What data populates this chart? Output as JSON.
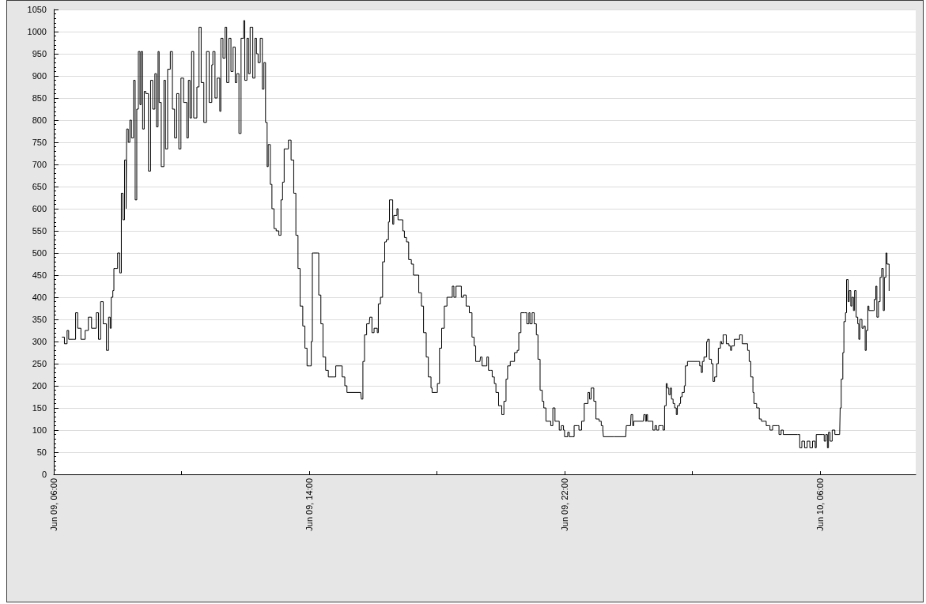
{
  "chart_data": {
    "type": "step",
    "color": "#000000",
    "line_style": "solid",
    "grid": "y",
    "xlim": [
      "--06-09T06:00",
      "--06-10T09:00"
    ],
    "xticks": [
      {
        "value": "--06-09T06:00",
        "label": "Jun 09, 06:00"
      },
      {
        "value": "--06-09T10:00",
        "label": null
      },
      {
        "value": "--06-09T14:00",
        "label": "Jun 09, 14:00"
      },
      {
        "value": "--06-09T18:00",
        "label": null
      },
      {
        "value": "--06-09T22:00",
        "label": "Jun 09, 22:00"
      },
      {
        "value": "--06-10T02:00",
        "label": null
      },
      {
        "value": "--06-10T06:00",
        "label": "Jun 10, 06:00"
      }
    ],
    "ylim": [
      0,
      1050
    ],
    "yticks": [
      0,
      50,
      100,
      150,
      200,
      250,
      300,
      350,
      400,
      450,
      500,
      550,
      600,
      650,
      700,
      750,
      800,
      850,
      900,
      950,
      1000,
      1050
    ],
    "x": [
      "--06-09T06:16",
      "--06-09T06:20",
      "--06-09T06:25",
      "--06-09T06:28",
      "--06-09T06:36",
      "--06-09T06:41",
      "--06-09T06:45",
      "--06-09T06:51",
      "--06-09T06:59",
      "--06-09T07:05",
      "--06-09T07:11",
      "--06-09T07:20",
      "--06-09T07:24",
      "--06-09T07:28",
      "--06-09T07:33",
      "--06-09T07:39",
      "--06-09T07:43",
      "--06-09T07:46",
      "--06-09T07:48",
      "--06-09T07:51",
      "--06-09T07:53",
      "--06-09T07:57",
      "--06-09T08:00",
      "--06-09T08:04",
      "--06-09T08:07",
      "--06-09T08:10",
      "--06-09T08:13",
      "--06-09T08:16",
      "--06-09T08:17",
      "--06-09T08:20",
      "--06-09T08:23",
      "--06-09T08:26",
      "--06-09T08:30",
      "--06-09T08:33",
      "--06-09T08:36",
      "--06-09T08:39",
      "--06-09T08:42",
      "--06-09T08:44",
      "--06-09T08:47",
      "--06-09T08:50",
      "--06-09T08:53",
      "--06-09T08:58",
      "--06-09T09:02",
      "--06-09T09:06",
      "--06-09T09:10",
      "--06-09T09:13",
      "--06-09T09:16",
      "--06-09T09:18",
      "--06-09T09:22",
      "--06-09T09:27",
      "--06-09T09:30",
      "--06-09T09:34",
      "--06-09T09:39",
      "--06-09T09:43",
      "--06-09T09:47",
      "--06-09T09:51",
      "--06-09T09:55",
      "--06-09T09:59",
      "--06-09T10:04",
      "--06-09T10:10",
      "--06-09T10:13",
      "--06-09T10:16",
      "--06-09T10:19",
      "--06-09T10:23",
      "--06-09T10:29",
      "--06-09T10:33",
      "--06-09T10:37",
      "--06-09T10:42",
      "--06-09T10:47",
      "--06-09T10:52",
      "--06-09T10:57",
      "--06-09T10:59",
      "--06-09T11:03",
      "--06-09T11:07",
      "--06-09T11:12",
      "--06-09T11:14",
      "--06-09T11:18",
      "--06-09T11:22",
      "--06-09T11:25",
      "--06-09T11:29",
      "--06-09T11:33",
      "--06-09T11:37",
      "--06-09T11:41",
      "--06-09T11:44",
      "--06-09T11:48",
      "--06-09T11:52",
      "--06-09T11:57",
      "--06-09T11:59",
      "--06-09T12:03",
      "--06-09T12:06",
      "--06-09T12:09",
      "--06-09T12:14",
      "--06-09T12:18",
      "--06-09T12:21",
      "--06-09T12:24",
      "--06-09T12:28",
      "--06-09T12:32",
      "--06-09T12:35",
      "--06-09T12:38",
      "--06-09T12:41",
      "--06-09T12:43",
      "--06-09T12:47",
      "--06-09T12:50",
      "--06-09T12:54",
      "--06-09T12:58",
      "--06-09T13:03",
      "--06-09T13:07",
      "--06-09T13:10",
      "--06-09T13:13",
      "--06-09T13:17",
      "--06-09T13:21",
      "--06-09T13:24",
      "--06-09T13:26",
      "--06-09T13:31",
      "--06-09T13:35",
      "--06-09T13:39",
      "--06-09T13:43",
      "--06-09T13:48",
      "--06-09T13:52",
      "--06-09T13:56",
      "--06-09T14:01",
      "--06-09T14:04",
      "--06-09T14:06",
      "--06-09T14:08",
      "--06-09T14:16",
      "--06-09T14:18",
      "--06-09T14:22",
      "--06-09T14:26",
      "--06-09T14:31",
      "--06-09T14:36",
      "--06-09T14:46",
      "--06-09T14:50",
      "--06-09T14:58",
      "--06-09T15:02",
      "--06-09T15:07",
      "--06-09T15:11",
      "--06-09T15:37",
      "--06-09T15:38",
      "--06-09T15:41",
      "--06-09T15:44",
      "--06-09T15:48",
      "--06-09T15:53",
      "--06-09T15:54",
      "--06-09T15:58",
      "--06-09T16:02",
      "--06-09T16:08",
      "--06-09T16:10",
      "--06-09T16:14",
      "--06-09T16:18",
      "--06-09T16:22",
      "--06-09T16:25",
      "--06-09T16:29",
      "--06-09T16:31",
      "--06-09T16:34",
      "--06-09T16:37",
      "--06-09T16:39",
      "--06-09T16:45",
      "--06-09T16:47",
      "--06-09T16:51",
      "--06-09T16:56",
      "--06-09T16:59",
      "--06-09T17:03",
      "--06-09T17:07",
      "--06-09T17:12",
      "--06-09T17:16",
      "--06-09T17:23",
      "--06-09T17:26",
      "--06-09T17:31",
      "--06-09T17:35",
      "--06-09T17:40",
      "--06-09T17:44",
      "--06-09T17:49",
      "--06-09T17:51",
      "--06-09T17:59",
      "--06-09T18:01",
      "--06-09T18:05",
      "--06-09T18:09",
      "--06-09T18:14",
      "--06-09T18:19",
      "--06-09T18:25",
      "--06-09T18:29",
      "--06-09T18:32",
      "--06-09T18:36",
      "--06-09T18:44",
      "--06-09T18:46",
      "--06-09T18:50",
      "--06-09T18:55",
      "--06-09T19:01",
      "--06-09T19:06",
      "--06-09T19:10",
      "--06-09T19:13",
      "--06-09T19:21",
      "--06-09T19:22",
      "--06-09T19:25",
      "--06-09T19:31",
      "--06-09T19:34",
      "--06-09T19:37",
      "--06-09T19:41",
      "--06-09T19:44",
      "--06-09T19:48",
      "--06-09T19:51",
      "--06-09T19:56",
      "--06-09T20:02",
      "--06-09T20:06",
      "--06-09T20:10",
      "--06-09T20:13",
      "--06-09T20:18",
      "--06-09T20:22",
      "--06-09T20:26",
      "--06-09T20:31",
      "--06-09T20:34",
      "--06-09T20:38",
      "--06-09T20:45",
      "--06-09T20:49",
      "--06-09T20:53",
      "--06-09T20:55",
      "--06-09T20:59",
      "--06-09T21:03",
      "--06-09T21:07",
      "--06-09T21:10",
      "--06-09T21:14",
      "--06-09T21:18",
      "--06-09T21:21",
      "--06-09T21:25",
      "--06-09T21:32",
      "--06-09T21:34",
      "--06-09T21:38",
      "--06-09T21:42",
      "--06-09T21:48",
      "--06-09T21:50",
      "--06-09T21:54",
      "--06-09T21:58",
      "--06-09T22:00",
      "--06-09T22:06",
      "--06-09T22:09",
      "--06-09T22:15",
      "--06-09T22:18",
      "--06-09T22:25",
      "--06-09T22:27",
      "--06-09T22:32",
      "--06-09T22:37",
      "--06-09T22:44",
      "--06-09T22:47",
      "--06-09T22:50",
      "--06-09T22:55",
      "--06-09T22:59",
      "--06-09T23:05",
      "--06-09T23:09",
      "--06-09T23:12",
      "--06-09T23:13",
      "--06-09T23:33",
      "--06-09T23:55",
      "--06-09T23:56",
      "--06-10T00:04",
      "--06-10T00:05",
      "--06-10T00:08",
      "--06-10T00:10",
      "--06-10T00:28",
      "--06-10T00:29",
      "--06-10T00:32",
      "--06-10T00:34",
      "--06-10T00:36",
      "--06-10T00:44",
      "--06-10T00:46",
      "--06-10T00:50",
      "--06-10T00:53",
      "--06-10T00:57",
      "--06-10T01:02",
      "--06-10T01:05",
      "--06-10T01:08",
      "--06-10T01:11",
      "--06-10T01:13",
      "--06-10T01:16",
      "--06-10T01:19",
      "--06-10T01:21",
      "--06-10T01:24",
      "--06-10T01:27",
      "--06-10T01:30",
      "--06-10T01:32",
      "--06-10T01:36",
      "--06-10T01:38",
      "--06-10T01:41",
      "--06-10T01:45",
      "--06-10T01:47",
      "--06-10T01:51",
      "--06-10T02:11",
      "--06-10T02:14",
      "--06-10T02:17",
      "--06-10T02:19",
      "--06-10T02:22",
      "--06-10T02:27",
      "--06-10T02:29",
      "--06-10T02:32",
      "--06-10T02:36",
      "--06-10T02:39",
      "--06-10T02:42",
      "--06-10T02:46",
      "--06-10T02:49",
      "--06-10T02:53",
      "--06-10T02:55",
      "--06-10T02:58",
      "--06-10T03:01",
      "--06-10T03:04",
      "--06-10T03:09",
      "--06-10T03:12",
      "--06-10T03:14",
      "--06-10T03:19",
      "--06-10T03:26",
      "--06-10T03:29",
      "--06-10T03:32",
      "--06-10T03:34",
      "--06-10T03:39",
      "--06-10T03:44",
      "--06-10T03:47",
      "--06-10T03:50",
      "--06-10T03:54",
      "--06-10T03:56",
      "--06-10T04:01",
      "--06-10T04:06",
      "--06-10T04:10",
      "--06-10T04:16",
      "--06-10T04:19",
      "--06-10T04:24",
      "--06-10T04:26",
      "--06-10T04:31",
      "--06-10T04:41",
      "--06-10T04:43",
      "--06-10T04:47",
      "--06-10T04:51",
      "--06-10T05:18",
      "--06-10T05:22",
      "--06-10T05:26",
      "--06-10T05:31",
      "--06-10T05:36",
      "--06-10T05:41",
      "--06-10T05:46",
      "--06-10T05:51",
      "--06-10T05:53",
      "--06-10T06:05",
      "--06-10T06:08",
      "--06-10T06:11",
      "--06-10T06:14",
      "--06-10T06:16",
      "--06-10T06:19",
      "--06-10T06:23",
      "--06-10T06:28",
      "--06-10T06:37",
      "--06-10T06:38",
      "--06-10T06:40",
      "--06-10T06:43",
      "--06-10T06:45",
      "--06-10T06:48",
      "--06-10T06:50",
      "--06-10T06:53",
      "--06-10T06:55",
      "--06-10T06:58",
      "--06-10T07:00",
      "--06-10T07:03",
      "--06-10T07:05",
      "--06-10T07:08",
      "--06-10T07:11",
      "--06-10T07:13",
      "--06-10T07:15",
      "--06-10T07:19",
      "--06-10T07:22",
      "--06-10T07:25",
      "--06-10T07:27",
      "--06-10T07:30",
      "--06-10T07:32",
      "--06-10T07:40",
      "--06-10T07:42",
      "--06-10T07:45",
      "--06-10T07:47",
      "--06-10T07:50",
      "--06-10T07:53",
      "--06-10T07:56",
      "--06-10T07:59",
      "--06-10T08:01",
      "--06-10T08:04",
      "--06-10T08:06",
      "--06-10T08:10"
    ],
    "values": [
      310,
      295,
      325,
      305,
      305,
      365,
      330,
      305,
      325,
      355,
      330,
      365,
      305,
      390,
      340,
      280,
      355,
      330,
      400,
      415,
      465,
      465,
      500,
      455,
      635,
      575,
      710,
      600,
      780,
      750,
      800,
      760,
      890,
      620,
      825,
      955,
      835,
      955,
      780,
      865,
      860,
      685,
      890,
      825,
      905,
      785,
      955,
      840,
      695,
      890,
      735,
      915,
      955,
      825,
      760,
      860,
      735,
      895,
      840,
      760,
      890,
      805,
      955,
      805,
      875,
      1010,
      885,
      795,
      955,
      840,
      925,
      955,
      850,
      895,
      820,
      985,
      940,
      1010,
      885,
      985,
      910,
      965,
      885,
      905,
      770,
      985,
      1025,
      890,
      985,
      905,
      1010,
      895,
      985,
      950,
      930,
      985,
      870,
      930,
      795,
      695,
      745,
      655,
      600,
      555,
      550,
      540,
      620,
      660,
      735,
      735,
      755,
      755,
      710,
      635,
      540,
      465,
      380,
      335,
      285,
      245,
      245,
      300,
      500,
      500,
      500,
      405,
      340,
      265,
      235,
      220,
      220,
      245,
      245,
      220,
      200,
      185,
      185,
      170,
      255,
      315,
      340,
      340,
      355,
      320,
      330,
      320,
      385,
      400,
      480,
      525,
      530,
      570,
      620,
      620,
      565,
      585,
      600,
      575,
      575,
      550,
      535,
      525,
      485,
      475,
      450,
      450,
      410,
      380,
      320,
      265,
      220,
      195,
      185,
      185,
      205,
      285,
      330,
      380,
      400,
      400,
      425,
      400,
      425,
      425,
      400,
      405,
      380,
      365,
      310,
      290,
      255,
      255,
      265,
      245,
      245,
      265,
      235,
      235,
      220,
      205,
      185,
      155,
      135,
      165,
      215,
      245,
      255,
      255,
      275,
      280,
      320,
      365,
      365,
      340,
      365,
      340,
      365,
      340,
      315,
      260,
      190,
      165,
      150,
      120,
      120,
      110,
      150,
      120,
      120,
      100,
      110,
      100,
      85,
      95,
      85,
      85,
      110,
      110,
      100,
      120,
      160,
      185,
      170,
      195,
      165,
      125,
      120,
      110,
      100,
      85,
      85,
      85,
      110,
      110,
      135,
      110,
      120,
      120,
      135,
      120,
      135,
      120,
      120,
      100,
      110,
      100,
      110,
      110,
      100,
      155,
      205,
      195,
      180,
      195,
      170,
      160,
      150,
      135,
      155,
      160,
      175,
      185,
      200,
      245,
      255,
      255,
      245,
      230,
      255,
      265,
      300,
      305,
      260,
      250,
      210,
      220,
      250,
      285,
      300,
      295,
      315,
      315,
      295,
      290,
      280,
      290,
      305,
      305,
      315,
      315,
      295,
      295,
      280,
      255,
      220,
      185,
      160,
      150,
      125,
      120,
      120,
      110,
      110,
      100,
      110,
      110,
      90,
      100,
      90,
      90,
      60,
      75,
      60,
      75,
      60,
      75,
      60,
      90,
      90,
      75,
      90,
      60,
      95,
      75,
      100,
      90,
      90,
      150,
      215,
      275,
      345,
      365,
      440,
      390,
      415,
      380,
      400,
      370,
      415,
      355,
      340,
      305,
      350,
      330,
      335,
      280,
      325,
      380,
      370,
      370,
      395,
      425,
      355,
      390,
      445,
      465,
      370,
      445,
      500,
      475,
      415
    ]
  }
}
